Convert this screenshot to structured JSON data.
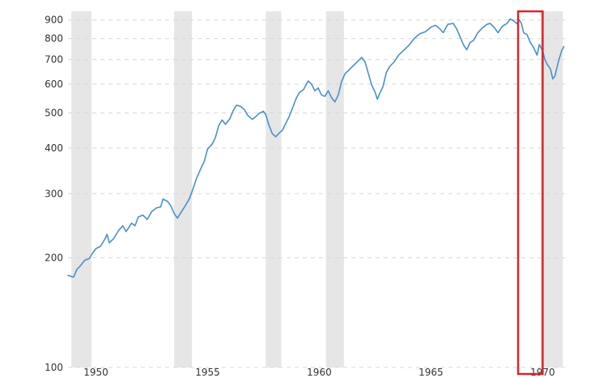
{
  "colors": {
    "line": "#4a8fcc",
    "recession": "#e6e6e6",
    "grid": "#d9d9d9",
    "highlight": "#d9252a",
    "text": "#333333"
  },
  "chart_data": {
    "type": "line",
    "title": "",
    "xlabel": "",
    "ylabel": "",
    "y_scale": "log",
    "grid": true,
    "xlim": [
      1948.75,
      1971.0
    ],
    "ylim": [
      100,
      950
    ],
    "x_ticks": [
      1950,
      1955,
      1960,
      1965,
      1970
    ],
    "x_tick_labels": [
      "1950",
      "1955",
      "1960",
      "1965",
      "1970"
    ],
    "y_ticks": [
      100,
      200,
      300,
      400,
      500,
      600,
      700,
      800,
      900
    ],
    "y_tick_labels": [
      "100",
      "200",
      "300",
      "400",
      "500",
      "600",
      "700",
      "800",
      "900"
    ],
    "recession_periods": [
      [
        1948.9,
        1949.8
      ],
      [
        1953.5,
        1954.3
      ],
      [
        1957.6,
        1958.3
      ],
      [
        1960.3,
        1961.1
      ],
      [
        1969.9,
        1970.9
      ]
    ],
    "highlight_range": {
      "x": [
        1968.9,
        1970.0
      ],
      "y": [
        100,
        950
      ]
    },
    "series": [
      {
        "values": [
          [
            1948.75,
            179
          ],
          [
            1949.0,
            177
          ],
          [
            1949.15,
            186
          ],
          [
            1949.3,
            190
          ],
          [
            1949.5,
            197
          ],
          [
            1949.7,
            199
          ],
          [
            1949.85,
            206
          ],
          [
            1950.0,
            212
          ],
          [
            1950.2,
            215
          ],
          [
            1950.4,
            225
          ],
          [
            1950.5,
            232
          ],
          [
            1950.6,
            220
          ],
          [
            1950.8,
            226
          ],
          [
            1951.0,
            237
          ],
          [
            1951.2,
            245
          ],
          [
            1951.35,
            236
          ],
          [
            1951.6,
            249
          ],
          [
            1951.75,
            245
          ],
          [
            1951.9,
            259
          ],
          [
            1952.1,
            262
          ],
          [
            1952.3,
            255
          ],
          [
            1952.5,
            268
          ],
          [
            1952.7,
            274
          ],
          [
            1952.9,
            276
          ],
          [
            1953.0,
            290
          ],
          [
            1953.2,
            286
          ],
          [
            1953.35,
            278
          ],
          [
            1953.5,
            265
          ],
          [
            1953.65,
            257
          ],
          [
            1953.8,
            266
          ],
          [
            1954.0,
            278
          ],
          [
            1954.2,
            292
          ],
          [
            1954.35,
            310
          ],
          [
            1954.5,
            330
          ],
          [
            1954.7,
            352
          ],
          [
            1954.85,
            368
          ],
          [
            1955.0,
            398
          ],
          [
            1955.2,
            410
          ],
          [
            1955.35,
            428
          ],
          [
            1955.5,
            462
          ],
          [
            1955.65,
            478
          ],
          [
            1955.8,
            465
          ],
          [
            1956.0,
            482
          ],
          [
            1956.15,
            508
          ],
          [
            1956.3,
            525
          ],
          [
            1956.5,
            520
          ],
          [
            1956.65,
            510
          ],
          [
            1956.8,
            492
          ],
          [
            1957.0,
            480
          ],
          [
            1957.15,
            488
          ],
          [
            1957.3,
            498
          ],
          [
            1957.5,
            505
          ],
          [
            1957.6,
            495
          ],
          [
            1957.75,
            462
          ],
          [
            1957.9,
            438
          ],
          [
            1958.05,
            430
          ],
          [
            1958.2,
            440
          ],
          [
            1958.35,
            448
          ],
          [
            1958.5,
            468
          ],
          [
            1958.65,
            488
          ],
          [
            1958.8,
            515
          ],
          [
            1958.95,
            545
          ],
          [
            1959.1,
            568
          ],
          [
            1959.3,
            580
          ],
          [
            1959.5,
            612
          ],
          [
            1959.65,
            600
          ],
          [
            1959.8,
            575
          ],
          [
            1959.95,
            585
          ],
          [
            1960.1,
            560
          ],
          [
            1960.25,
            555
          ],
          [
            1960.4,
            575
          ],
          [
            1960.55,
            550
          ],
          [
            1960.7,
            536
          ],
          [
            1960.85,
            560
          ],
          [
            1961.0,
            610
          ],
          [
            1961.15,
            640
          ],
          [
            1961.35,
            658
          ],
          [
            1961.55,
            676
          ],
          [
            1961.75,
            695
          ],
          [
            1961.9,
            710
          ],
          [
            1962.05,
            690
          ],
          [
            1962.2,
            640
          ],
          [
            1962.35,
            595
          ],
          [
            1962.5,
            570
          ],
          [
            1962.6,
            545
          ],
          [
            1962.7,
            565
          ],
          [
            1962.85,
            590
          ],
          [
            1963.0,
            645
          ],
          [
            1963.15,
            670
          ],
          [
            1963.35,
            690
          ],
          [
            1963.55,
            720
          ],
          [
            1963.75,
            740
          ],
          [
            1964.0,
            765
          ],
          [
            1964.25,
            800
          ],
          [
            1964.5,
            825
          ],
          [
            1964.75,
            835
          ],
          [
            1965.0,
            860
          ],
          [
            1965.2,
            870
          ],
          [
            1965.4,
            850
          ],
          [
            1965.55,
            830
          ],
          [
            1965.75,
            875
          ],
          [
            1966.0,
            880
          ],
          [
            1966.15,
            850
          ],
          [
            1966.3,
            810
          ],
          [
            1966.45,
            770
          ],
          [
            1966.6,
            745
          ],
          [
            1966.75,
            780
          ],
          [
            1966.9,
            790
          ],
          [
            1967.1,
            830
          ],
          [
            1967.3,
            855
          ],
          [
            1967.5,
            875
          ],
          [
            1967.65,
            880
          ],
          [
            1967.85,
            855
          ],
          [
            1968.0,
            830
          ],
          [
            1968.2,
            865
          ],
          [
            1968.4,
            880
          ],
          [
            1968.55,
            905
          ],
          [
            1968.7,
            895
          ],
          [
            1968.85,
            878
          ],
          [
            1968.95,
            900
          ],
          [
            1969.05,
            880
          ],
          [
            1969.15,
            830
          ],
          [
            1969.3,
            820
          ],
          [
            1969.45,
            780
          ],
          [
            1969.6,
            755
          ],
          [
            1969.75,
            720
          ],
          [
            1969.85,
            770
          ],
          [
            1970.0,
            740
          ],
          [
            1970.1,
            700
          ],
          [
            1970.2,
            680
          ],
          [
            1970.35,
            660
          ],
          [
            1970.45,
            620
          ],
          [
            1970.55,
            631
          ],
          [
            1970.7,
            690
          ],
          [
            1970.85,
            740
          ],
          [
            1970.95,
            760
          ]
        ]
      }
    ]
  }
}
